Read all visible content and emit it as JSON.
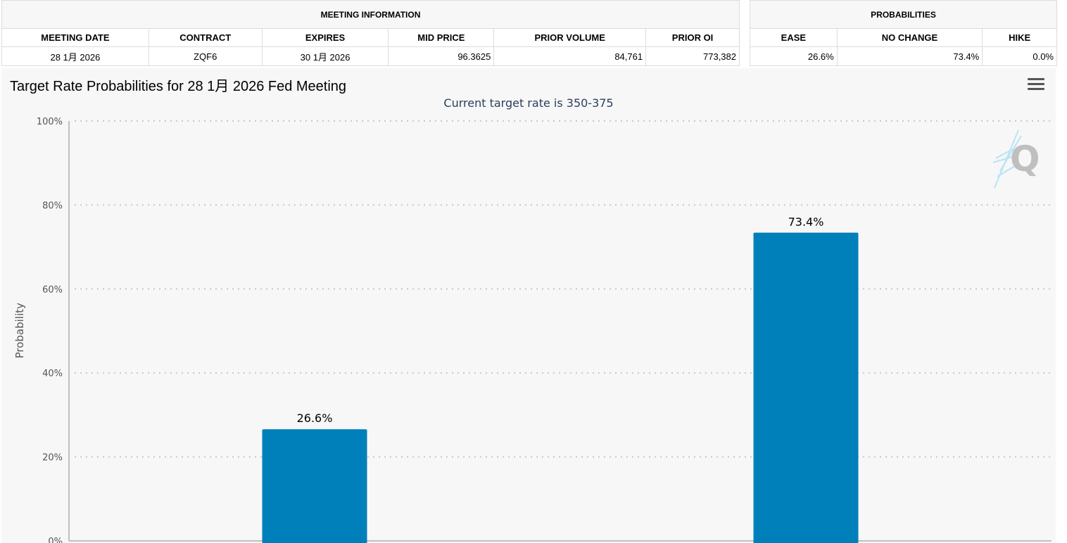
{
  "meeting_info": {
    "header": "MEETING INFORMATION",
    "columns": [
      "MEETING DATE",
      "CONTRACT",
      "EXPIRES",
      "MID PRICE",
      "PRIOR VOLUME",
      "PRIOR OI"
    ],
    "row": [
      "28 1月 2026",
      "ZQF6",
      "30 1月 2026",
      "96.3625",
      "84,761",
      "773,382"
    ]
  },
  "probabilities": {
    "header": "PROBABILITIES",
    "columns": [
      "EASE",
      "NO CHANGE",
      "HIKE"
    ],
    "row": [
      "26.6%",
      "73.4%",
      "0.0%"
    ]
  },
  "chart": {
    "menu_icon": "hamburger-menu-icon",
    "watermark_icon": "quikstrike-q-logo",
    "bar_color": "#0080bb"
  },
  "chart_data": {
    "type": "bar",
    "title": "Target Rate Probabilities for 28 1月 2026 Fed Meeting",
    "subtitle": "Current target rate is 350-375",
    "ylabel": "Probability",
    "xlabel": "",
    "ylim": [
      0,
      100
    ],
    "y_ticks": [
      "0%",
      "20%",
      "40%",
      "60%",
      "80%",
      "100%"
    ],
    "y_tick_values": [
      0,
      20,
      40,
      60,
      80,
      100
    ],
    "grid": true,
    "values": [
      26.6,
      73.4
    ],
    "data_labels": [
      "26.6%",
      "73.4%"
    ]
  }
}
